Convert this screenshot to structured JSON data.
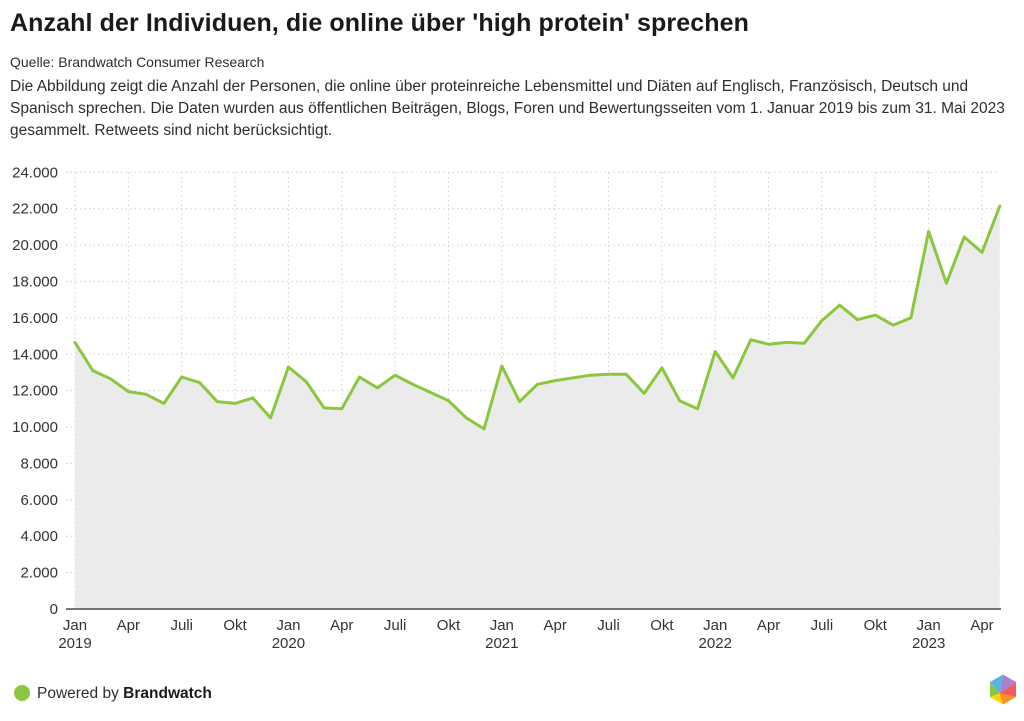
{
  "header": {
    "title": "Anzahl der Individuen, die online über 'high protein' sprechen",
    "source": "Quelle: Brandwatch Consumer Research",
    "description": "Die Abbildung zeigt die Anzahl der Personen, die online über proteinreiche Lebensmittel und Diäten auf Englisch, Französisch, Deutsch und Spanisch sprechen. Die Daten wurden aus öffentlichen Beiträgen, Blogs, Foren und Bewertungsseiten vom 1. Januar 2019 bis zum 31. Mai 2023 gesammelt. Retweets sind nicht berücksichtigt."
  },
  "chart_data": {
    "type": "area",
    "title": "Anzahl der Individuen, die online über 'high protein' sprechen",
    "x_range": {
      "start": "2019-01",
      "end": "2023-05",
      "freq": "monthly",
      "points": 53
    },
    "ylim": [
      0,
      24000
    ],
    "grid": "dotted",
    "legend": "none",
    "y_ticks": [
      0,
      2000,
      4000,
      6000,
      8000,
      10000,
      12000,
      14000,
      16000,
      18000,
      20000,
      22000,
      24000
    ],
    "y_tick_labels": [
      "0",
      "2.000",
      "4.000",
      "6.000",
      "8.000",
      "10.000",
      "12.000",
      "14.000",
      "16.000",
      "18.000",
      "20.000",
      "22.000",
      "24.000"
    ],
    "x_tick_labels": [
      {
        "i": 0,
        "m": "Jan",
        "y": "2019"
      },
      {
        "i": 3,
        "m": "Apr"
      },
      {
        "i": 6,
        "m": "Juli"
      },
      {
        "i": 9,
        "m": "Okt"
      },
      {
        "i": 12,
        "m": "Jan",
        "y": "2020"
      },
      {
        "i": 15,
        "m": "Apr"
      },
      {
        "i": 18,
        "m": "Juli"
      },
      {
        "i": 21,
        "m": "Okt"
      },
      {
        "i": 24,
        "m": "Jan",
        "y": "2021"
      },
      {
        "i": 27,
        "m": "Apr"
      },
      {
        "i": 30,
        "m": "Juli"
      },
      {
        "i": 33,
        "m": "Okt"
      },
      {
        "i": 36,
        "m": "Jan",
        "y": "2022"
      },
      {
        "i": 39,
        "m": "Apr"
      },
      {
        "i": 42,
        "m": "Juli"
      },
      {
        "i": 45,
        "m": "Okt"
      },
      {
        "i": 48,
        "m": "Jan",
        "y": "2023"
      },
      {
        "i": 51,
        "m": "Apr"
      }
    ],
    "series": [
      {
        "name": "Individuen",
        "values": [
          14650,
          13100,
          12650,
          11950,
          11800,
          11300,
          12750,
          12450,
          11400,
          11300,
          11600,
          10500,
          13300,
          12500,
          11050,
          11000,
          12750,
          12150,
          12850,
          12350,
          11900,
          11450,
          10500,
          9900,
          13350,
          11400,
          12350,
          12550,
          12700,
          12850,
          12900,
          12900,
          11850,
          13250,
          11450,
          11000,
          14150,
          12700,
          14800,
          14550,
          14650,
          14600,
          15850,
          16700,
          15900,
          16150,
          15600,
          16000,
          20750,
          17900,
          20450,
          19600,
          22150
        ]
      }
    ],
    "line_color": "#8cc63e",
    "fill_color": "#ebebeb",
    "grid_color": "#cccccc",
    "axis_color": "#4a4a4a",
    "tick_label_color": "#333333"
  },
  "footer": {
    "powered_by": "Powered by",
    "brand": "Brandwatch",
    "dot_color": "#8cc63e",
    "logo_colors": {
      "blue": "#56b6e0",
      "purple": "#a87fd1",
      "red": "#f25c5c",
      "orange": "#f7941e",
      "yellow": "#ffd200",
      "green": "#8cc63e"
    }
  }
}
